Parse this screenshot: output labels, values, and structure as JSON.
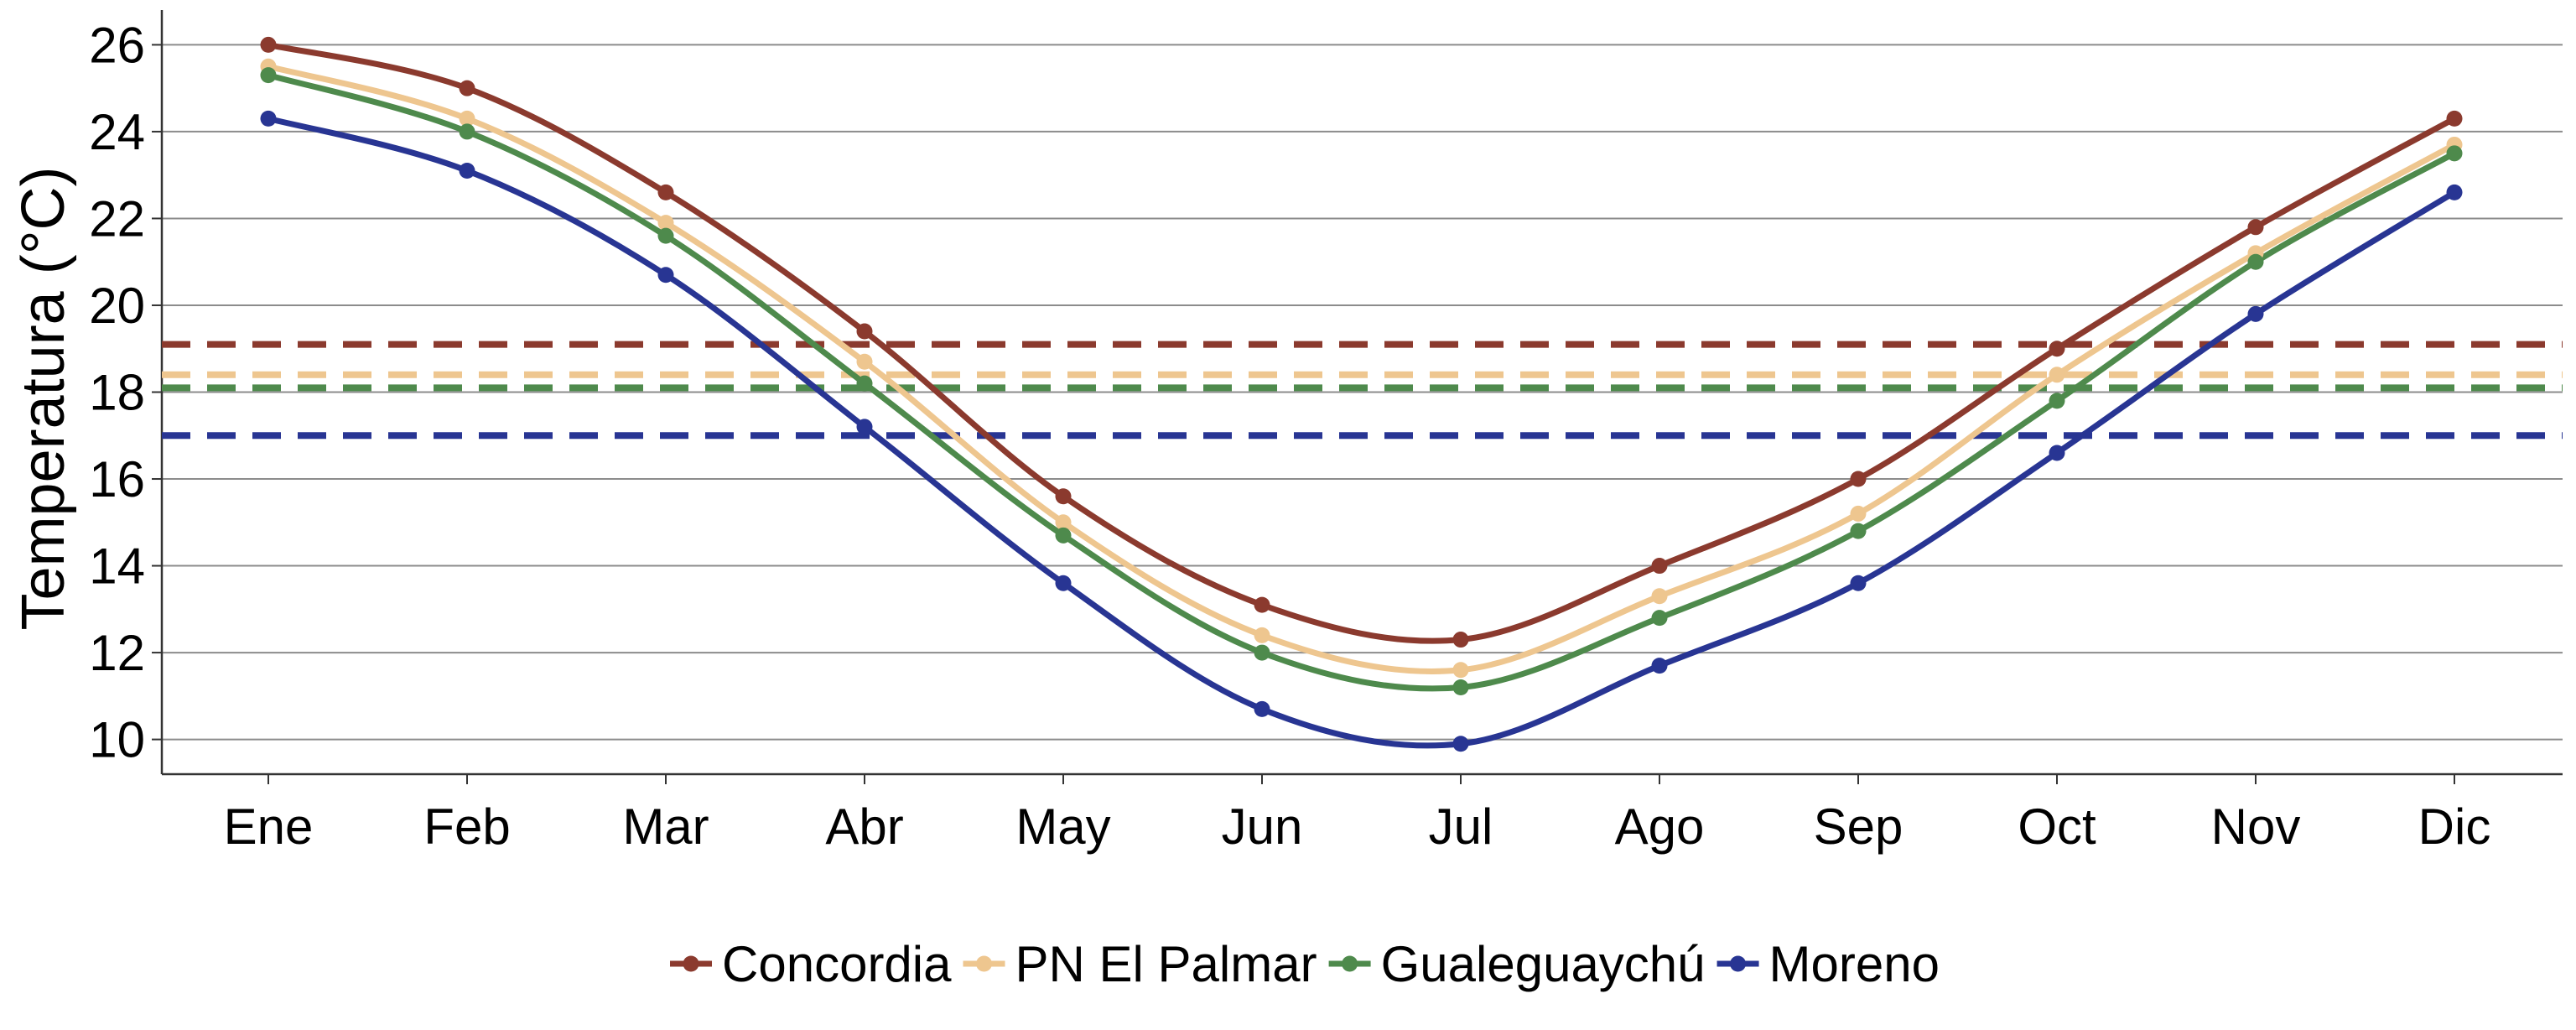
{
  "chart_data": {
    "type": "line",
    "title": "",
    "xlabel": "",
    "ylabel": "Temperatura (°C)",
    "categories": [
      "Ene",
      "Feb",
      "Mar",
      "Abr",
      "May",
      "Jun",
      "Jul",
      "Ago",
      "Sep",
      "Oct",
      "Nov",
      "Dic"
    ],
    "ylim": [
      9.2,
      26.8
    ],
    "yticks": [
      "10",
      "12",
      "14",
      "16",
      "18",
      "20",
      "22",
      "24",
      "26"
    ],
    "grid": "horizontal",
    "legend_position": "bottom",
    "series": [
      {
        "name": "Concordia",
        "color": "#8B3A2E",
        "values": [
          26.0,
          25.0,
          22.6,
          19.4,
          15.6,
          13.1,
          12.3,
          14.0,
          16.0,
          19.0,
          21.8,
          24.3
        ],
        "annual_mean": 19.1
      },
      {
        "name": "PN El Palmar",
        "color": "#EEC68F",
        "values": [
          25.5,
          24.3,
          21.9,
          18.7,
          15.0,
          12.4,
          11.6,
          13.3,
          15.2,
          18.4,
          21.2,
          23.7
        ],
        "annual_mean": 18.4
      },
      {
        "name": "Gualeguaychú",
        "color": "#4E8A4C",
        "values": [
          25.3,
          24.0,
          21.6,
          18.2,
          14.7,
          12.0,
          11.2,
          12.8,
          14.8,
          17.8,
          21.0,
          23.5
        ],
        "annual_mean": 18.1
      },
      {
        "name": "Moreno",
        "color": "#283593",
        "values": [
          24.3,
          23.1,
          20.7,
          17.2,
          13.6,
          10.7,
          9.9,
          11.7,
          13.6,
          16.6,
          19.8,
          22.6
        ],
        "annual_mean": 17.0
      }
    ]
  }
}
